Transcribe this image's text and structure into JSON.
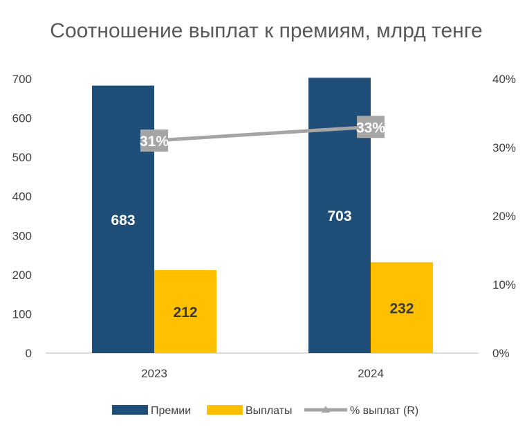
{
  "chart_data": {
    "type": "bar",
    "title": "Соотношение выплат к премиям, млрд тенге",
    "categories": [
      "2023",
      "2024"
    ],
    "series": [
      {
        "name": "Премии",
        "axis": "left",
        "kind": "bar",
        "color": "#1F4E79",
        "values": [
          683,
          703
        ],
        "labels": [
          "683",
          "703"
        ],
        "label_color": "#ffffff"
      },
      {
        "name": "Выплаты",
        "axis": "left",
        "kind": "bar",
        "color": "#FFC000",
        "values": [
          212,
          232
        ],
        "labels": [
          "212",
          "232"
        ],
        "label_color": "#3a3a3a"
      },
      {
        "name": "% выплат (R)",
        "axis": "right",
        "kind": "line",
        "color": "#A5A5A5",
        "values": [
          31,
          33
        ],
        "labels": [
          "31%",
          "33%"
        ],
        "label_color": "#ffffff"
      }
    ],
    "y_left": {
      "min": 0,
      "max": 700,
      "ticks": [
        "0",
        "100",
        "200",
        "300",
        "400",
        "500",
        "600",
        "700"
      ]
    },
    "y_right": {
      "min": 0,
      "max": 40,
      "ticks": [
        "0%",
        "10%",
        "20%",
        "30%",
        "40%"
      ]
    },
    "xlabel": "",
    "ylabel": "",
    "grid": false,
    "legend_position": "bottom-center"
  }
}
